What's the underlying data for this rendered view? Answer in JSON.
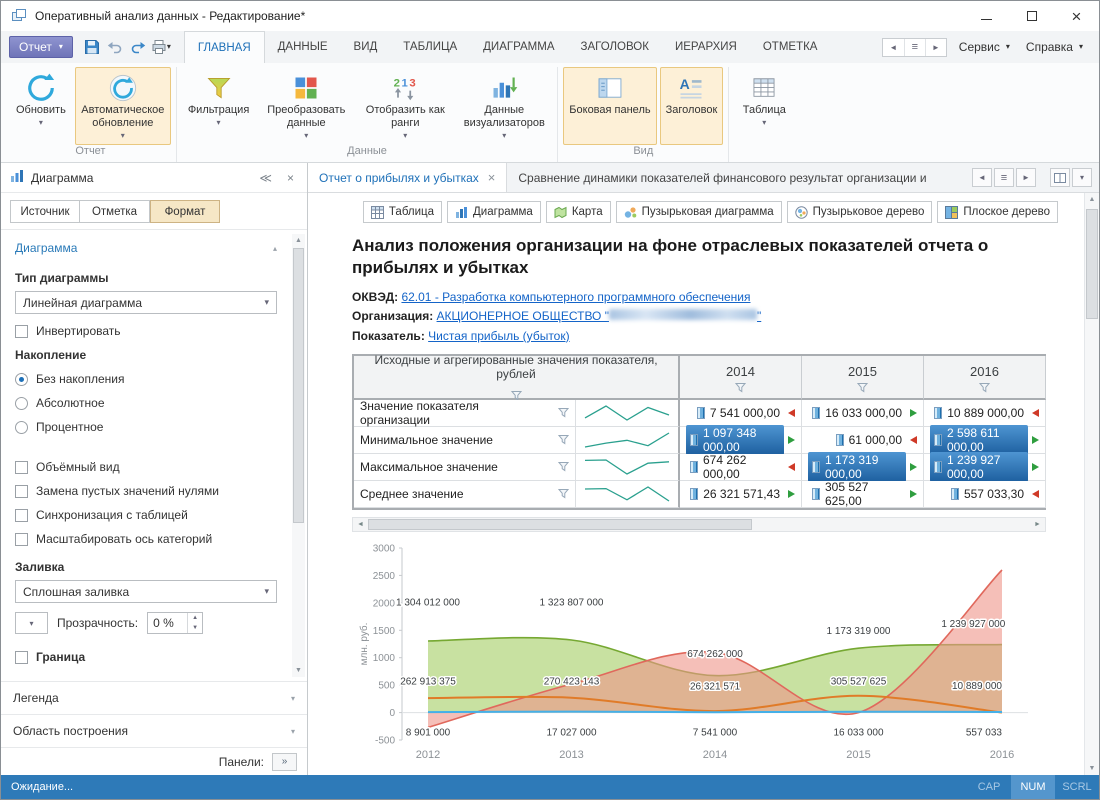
{
  "window": {
    "title": "Оперативный анализ данных - Редактирование*"
  },
  "menubar": {
    "app_button": "Отчет",
    "tabs": [
      "ГЛАВНАЯ",
      "ДАННЫЕ",
      "ВИД",
      "ТАБЛИЦА",
      "ДИАГРАММА",
      "ЗАГОЛОВОК",
      "ИЕРАРХИЯ",
      "ОТМЕТКА"
    ],
    "active_tab": "ГЛАВНАЯ",
    "right_menus": [
      "Сервис",
      "Справка"
    ]
  },
  "ribbon": {
    "groups": [
      {
        "label": "Отчет",
        "buttons": [
          {
            "label": "Обновить",
            "icon": "refresh-icon",
            "dropdown": true,
            "active": false
          },
          {
            "label": "Автоматическое обновление",
            "icon": "auto-refresh-icon",
            "dropdown": true,
            "active": true
          }
        ]
      },
      {
        "label": "Данные",
        "buttons": [
          {
            "label": "Фильтрация",
            "icon": "filter-icon",
            "dropdown": true,
            "active": false
          },
          {
            "label": "Преобразовать данные",
            "icon": "transform-data-icon",
            "dropdown": true,
            "active": false
          },
          {
            "label": "Отобразить как ранги",
            "icon": "ranks-icon",
            "dropdown": true,
            "active": false
          },
          {
            "label": "Данные визуализаторов",
            "icon": "visualizer-data-icon",
            "dropdown": true,
            "active": false
          }
        ]
      },
      {
        "label": "Вид",
        "buttons": [
          {
            "label": "Боковая панель",
            "icon": "side-panel-icon",
            "dropdown": false,
            "active": true
          },
          {
            "label": "Заголовок",
            "icon": "title-icon",
            "dropdown": false,
            "active": true
          }
        ]
      },
      {
        "label": "",
        "buttons": [
          {
            "label": "Таблица",
            "icon": "table-icon",
            "dropdown": true,
            "active": false
          }
        ]
      }
    ]
  },
  "side_panel": {
    "title": "Диаграмма",
    "tabs": [
      "Источник",
      "Отметка",
      "Формат"
    ],
    "active_tab": "Формат",
    "section": "Диаграмма",
    "chart_type_label": "Тип диаграммы",
    "chart_type_value": "Линейная диаграмма",
    "invert_label": "Инвертировать",
    "stacking_label": "Накопление",
    "stacking_options": [
      "Без накопления",
      "Абсолютное",
      "Процентное"
    ],
    "stacking_selected": "Без накопления",
    "checkboxes": [
      "Объёмный вид",
      "Замена пустых значений нулями",
      "Синхронизация с таблицей",
      "Масштабировать ось категорий"
    ],
    "fill_label": "Заливка",
    "fill_value": "Сплошная заливка",
    "opacity_label": "Прозрачность:",
    "opacity_value": "0 %",
    "border_label": "Граница",
    "collapsed_sections": [
      "Легенда",
      "Область построения"
    ],
    "panels_label": "Панели:"
  },
  "doc_tabs": {
    "active": "Отчет о прибылях и убытках",
    "other": "Сравнение динамики показателей финансового результат организации и"
  },
  "viz_toolbar": [
    {
      "label": "Таблица",
      "icon": "table-view-icon"
    },
    {
      "label": "Диаграмма",
      "icon": "chart-view-icon"
    },
    {
      "label": "Карта",
      "icon": "map-view-icon"
    },
    {
      "label": "Пузырьковая диаграмма",
      "icon": "bubble-chart-icon"
    },
    {
      "label": "Пузырьковое дерево",
      "icon": "bubble-tree-icon"
    },
    {
      "label": "Плоское дерево",
      "icon": "flat-tree-icon"
    }
  ],
  "report": {
    "title": "Анализ положения организации на фоне отраслевых показателей отчета о прибылях и убытках",
    "okved_label": "ОКВЭД:",
    "okved_value": "62.01 - Разработка компьютерного программного обеспечения",
    "org_label": "Организация:",
    "org_value": "АКЦИОНЕРНОЕ ОБЩЕСТВО \"",
    "org_value_end": "\"",
    "indicator_label": "Показатель:",
    "indicator_value": "Чистая прибыль (убыток)"
  },
  "table": {
    "header": "Исходные и агрегированные значения показателя, рублей",
    "years": [
      "2014",
      "2015",
      "2016"
    ],
    "rows": [
      {
        "label": "Значение показателя организации",
        "values": [
          "7 541 000,00",
          "16 033 000,00",
          "10 889 000,00"
        ],
        "trend": [
          "down",
          "up",
          "down"
        ],
        "sel": [
          false,
          false,
          false
        ],
        "spark": [
          8.9,
          17.0,
          7.5,
          16.0,
          10.9
        ]
      },
      {
        "label": "Минимальное значение",
        "values": [
          "1 097 348 000,00",
          "61 000,00",
          "2 598 611 000,00"
        ],
        "trend": [
          "up",
          "down",
          "up"
        ],
        "sel": [
          true,
          false,
          true
        ],
        "spark": [
          -270,
          520,
          1097.3,
          0.1,
          2598.6
        ]
      },
      {
        "label": "Максимальное значение",
        "values": [
          "674 262 000,00",
          "1 173 319 000,00",
          "1 239 927 000,00"
        ],
        "trend": [
          "down",
          "up",
          "up"
        ],
        "sel": [
          false,
          true,
          true
        ],
        "spark": [
          1304.0,
          1323.8,
          674.3,
          1173.3,
          1239.9
        ]
      },
      {
        "label": "Среднее значение",
        "values": [
          "26 321 571,43",
          "305 527 625,00",
          "557 033,30"
        ],
        "trend": [
          "up",
          "up",
          "down"
        ],
        "sel": [
          false,
          false,
          false
        ],
        "spark": [
          262.9,
          270.4,
          26.3,
          305.5,
          0.6
        ]
      }
    ]
  },
  "chart_data": {
    "type": "area",
    "x": [
      "2012",
      "2013",
      "2014",
      "2015",
      "2016"
    ],
    "ylabel": "млн. руб.",
    "ylim": [
      -500,
      3000
    ],
    "yticks": [
      3000,
      2500,
      2000,
      1500,
      1000,
      500,
      0,
      -500
    ],
    "grid": false,
    "legend": false,
    "series": [
      {
        "name": "Максимальное значение",
        "kind": "area",
        "color": "#76a832",
        "fill": "#a4cd63",
        "values": [
          1304.0,
          1323.8,
          674.3,
          1173.3,
          1239.9
        ]
      },
      {
        "name": "Минимальное значение",
        "kind": "area",
        "color": "#e0685c",
        "fill": "#ef9489",
        "values": [
          -270,
          520,
          1097.3,
          0.1,
          2598.6
        ]
      },
      {
        "name": "Среднее значение",
        "kind": "line",
        "color": "#e07b28",
        "values": [
          262.9,
          270.4,
          26.3,
          305.5,
          0.6
        ]
      },
      {
        "name": "Значение показателя организации",
        "kind": "line",
        "color": "#45b0e8",
        "values": [
          8.9,
          17.0,
          7.5,
          16.0,
          10.9
        ]
      }
    ],
    "point_labels": [
      {
        "text": "1 304 012 000",
        "xi": 0,
        "v": 1950
      },
      {
        "text": "1 323 807 000",
        "xi": 1,
        "v": 1950
      },
      {
        "text": "674 262 000",
        "xi": 2,
        "v": 1010
      },
      {
        "text": "26 321 571",
        "xi": 2,
        "v": 420
      },
      {
        "text": "262 913 375",
        "xi": 0,
        "v": 510
      },
      {
        "text": "270 423 143",
        "xi": 1,
        "v": 510
      },
      {
        "text": "1 173 319 000",
        "xi": 3,
        "v": 1430
      },
      {
        "text": "305 527 625",
        "xi": 3,
        "v": 510
      },
      {
        "text": "1 239 927 000",
        "xi": 3.8,
        "v": 1560
      },
      {
        "text": "10 889 000",
        "xi": 4,
        "v": 430,
        "anchor": "end"
      },
      {
        "text": "8 901 000",
        "xi": 0,
        "v": -420
      },
      {
        "text": "17 027 000",
        "xi": 1,
        "v": -420
      },
      {
        "text": "7 541 000",
        "xi": 2,
        "v": -420
      },
      {
        "text": "16 033 000",
        "xi": 3,
        "v": -420
      },
      {
        "text": "557 033",
        "xi": 4,
        "v": -420,
        "anchor": "end"
      }
    ]
  },
  "statusbar": {
    "text": "Ожидание...",
    "indicators": [
      "CAP",
      "NUM",
      "SCRL"
    ],
    "active": "NUM"
  }
}
